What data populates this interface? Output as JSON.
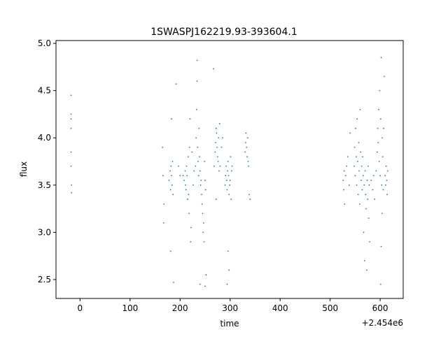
{
  "chart_data": {
    "type": "scatter",
    "title": "1SWASPJ162219.93-393604.1",
    "xlabel": "time",
    "ylabel": "flux",
    "x_offset_label": "+2.454e6",
    "xlim": [
      -48,
      646
    ],
    "ylim": [
      2.3,
      5.03
    ],
    "xticks": [
      0,
      100,
      200,
      300,
      400,
      500,
      600
    ],
    "yticks": [
      2.5,
      3.0,
      3.5,
      4.0,
      4.5,
      5.0
    ],
    "xtick_labels": [
      "0",
      "100",
      "200",
      "300",
      "400",
      "500",
      "600"
    ],
    "ytick_labels": [
      "2.5",
      "3.0",
      "3.5",
      "4.0",
      "4.5",
      "5.0"
    ],
    "grid": false,
    "marker_color": "#1f77b4",
    "series": [
      {
        "values_note": "",
        "points": [
          [
            -18,
            4.45
          ],
          [
            -18,
            4.25
          ],
          [
            -18,
            4.2
          ],
          [
            -18,
            4.1
          ],
          [
            -18,
            3.85
          ],
          [
            -18,
            3.7
          ],
          [
            -17,
            3.5
          ],
          [
            -17,
            3.42
          ],
          [
            165,
            3.9
          ],
          [
            166,
            3.6
          ],
          [
            167,
            3.1
          ],
          [
            168,
            3.3
          ],
          [
            178,
            3.55
          ],
          [
            180,
            3.65
          ],
          [
            181,
            3.45
          ],
          [
            182,
            3.7
          ],
          [
            183,
            3.6
          ],
          [
            184,
            3.5
          ],
          [
            185,
            3.75
          ],
          [
            186,
            3.4
          ],
          [
            183,
            4.2
          ],
          [
            181,
            2.8
          ],
          [
            187,
            2.47
          ],
          [
            192,
            4.57
          ],
          [
            197,
            3.7
          ],
          [
            200,
            3.6
          ],
          [
            206,
            3.6
          ],
          [
            208,
            3.55
          ],
          [
            210,
            3.65
          ],
          [
            211,
            3.5
          ],
          [
            212,
            3.45
          ],
          [
            213,
            3.7
          ],
          [
            214,
            3.6
          ],
          [
            215,
            3.35
          ],
          [
            216,
            3.8
          ],
          [
            217,
            3.4
          ],
          [
            218,
            3.2
          ],
          [
            219,
            3.9
          ],
          [
            220,
            4.2
          ],
          [
            221,
            2.9
          ],
          [
            222,
            3.05
          ],
          [
            224,
            3.85
          ],
          [
            226,
            3.5
          ],
          [
            228,
            3.65
          ],
          [
            231,
            3.7
          ],
          [
            232,
            4.0
          ],
          [
            233,
            4.3
          ],
          [
            234,
            4.6
          ],
          [
            234,
            4.82
          ],
          [
            235,
            3.9
          ],
          [
            236,
            3.75
          ],
          [
            237,
            3.6
          ],
          [
            238,
            4.1
          ],
          [
            239,
            3.8
          ],
          [
            240,
            3.65
          ],
          [
            241,
            3.5
          ],
          [
            242,
            3.55
          ],
          [
            243,
            3.4
          ],
          [
            244,
            3.3
          ],
          [
            245,
            3.2
          ],
          [
            246,
            3.0
          ],
          [
            247,
            3.1
          ],
          [
            248,
            2.9
          ],
          [
            249,
            3.75
          ],
          [
            250,
            3.55
          ],
          [
            251,
            3.45
          ],
          [
            252,
            2.55
          ],
          [
            240,
            2.45
          ],
          [
            250,
            2.43
          ],
          [
            268,
            3.7
          ],
          [
            270,
            3.85
          ],
          [
            271,
            3.95
          ],
          [
            272,
            4.1
          ],
          [
            273,
            4.05
          ],
          [
            274,
            3.9
          ],
          [
            275,
            3.8
          ],
          [
            276,
            3.75
          ],
          [
            277,
            4.0
          ],
          [
            278,
            3.65
          ],
          [
            279,
            4.15
          ],
          [
            280,
            3.7
          ],
          [
            283,
            3.9
          ],
          [
            285,
            4.0
          ],
          [
            267,
            4.73
          ],
          [
            272,
            3.35
          ],
          [
            290,
            3.5
          ],
          [
            291,
            3.6
          ],
          [
            292,
            3.7
          ],
          [
            293,
            3.55
          ],
          [
            294,
            3.45
          ],
          [
            295,
            3.65
          ],
          [
            296,
            3.75
          ],
          [
            297,
            3.6
          ],
          [
            298,
            3.4
          ],
          [
            299,
            3.5
          ],
          [
            300,
            3.55
          ],
          [
            301,
            3.8
          ],
          [
            302,
            3.35
          ],
          [
            303,
            3.65
          ],
          [
            304,
            3.7
          ],
          [
            296,
            2.8
          ],
          [
            298,
            2.6
          ],
          [
            294,
            2.45
          ],
          [
            330,
            3.85
          ],
          [
            331,
            3.95
          ],
          [
            332,
            4.05
          ],
          [
            333,
            3.9
          ],
          [
            334,
            3.8
          ],
          [
            335,
            4.0
          ],
          [
            336,
            3.75
          ],
          [
            337,
            3.7
          ],
          [
            338,
            3.4
          ],
          [
            340,
            3.35
          ],
          [
            526,
            3.55
          ],
          [
            527,
            3.45
          ],
          [
            528,
            3.65
          ],
          [
            529,
            3.3
          ],
          [
            531,
            3.6
          ],
          [
            533,
            3.7
          ],
          [
            535,
            3.8
          ],
          [
            538,
            3.5
          ],
          [
            540,
            4.05
          ],
          [
            548,
            3.7
          ],
          [
            549,
            3.9
          ],
          [
            550,
            3.6
          ],
          [
            551,
            4.1
          ],
          [
            552,
            3.8
          ],
          [
            553,
            3.5
          ],
          [
            554,
            4.2
          ],
          [
            555,
            3.75
          ],
          [
            556,
            3.4
          ],
          [
            557,
            3.95
          ],
          [
            558,
            3.65
          ],
          [
            559,
            3.3
          ],
          [
            560,
            4.3
          ],
          [
            561,
            3.85
          ],
          [
            562,
            3.55
          ],
          [
            563,
            3.7
          ],
          [
            564,
            3.45
          ],
          [
            565,
            3.8
          ],
          [
            566,
            3.6
          ],
          [
            567,
            3.0
          ],
          [
            568,
            3.5
          ],
          [
            569,
            2.7
          ],
          [
            570,
            3.65
          ],
          [
            571,
            3.4
          ],
          [
            572,
            3.25
          ],
          [
            573,
            2.6
          ],
          [
            574,
            3.55
          ],
          [
            575,
            3.35
          ],
          [
            576,
            3.7
          ],
          [
            577,
            3.15
          ],
          [
            578,
            3.5
          ],
          [
            579,
            2.9
          ],
          [
            582,
            3.55
          ],
          [
            585,
            3.45
          ],
          [
            587,
            3.6
          ],
          [
            589,
            3.35
          ],
          [
            592,
            3.65
          ],
          [
            594,
            3.85
          ],
          [
            595,
            4.1
          ],
          [
            596,
            3.95
          ],
          [
            597,
            4.3
          ],
          [
            598,
            3.75
          ],
          [
            599,
            4.5
          ],
          [
            600,
            3.6
          ],
          [
            601,
            4.2
          ],
          [
            602,
            4.85
          ],
          [
            603,
            3.5
          ],
          [
            604,
            4.0
          ],
          [
            605,
            3.8
          ],
          [
            606,
            3.45
          ],
          [
            607,
            4.1
          ],
          [
            608,
            4.65
          ],
          [
            610,
            3.6
          ],
          [
            611,
            3.5
          ],
          [
            612,
            3.7
          ],
          [
            613,
            3.55
          ],
          [
            614,
            3.4
          ],
          [
            615,
            3.65
          ],
          [
            601,
            2.45
          ],
          [
            602,
            2.85
          ],
          [
            604,
            3.2
          ]
        ]
      }
    ]
  }
}
